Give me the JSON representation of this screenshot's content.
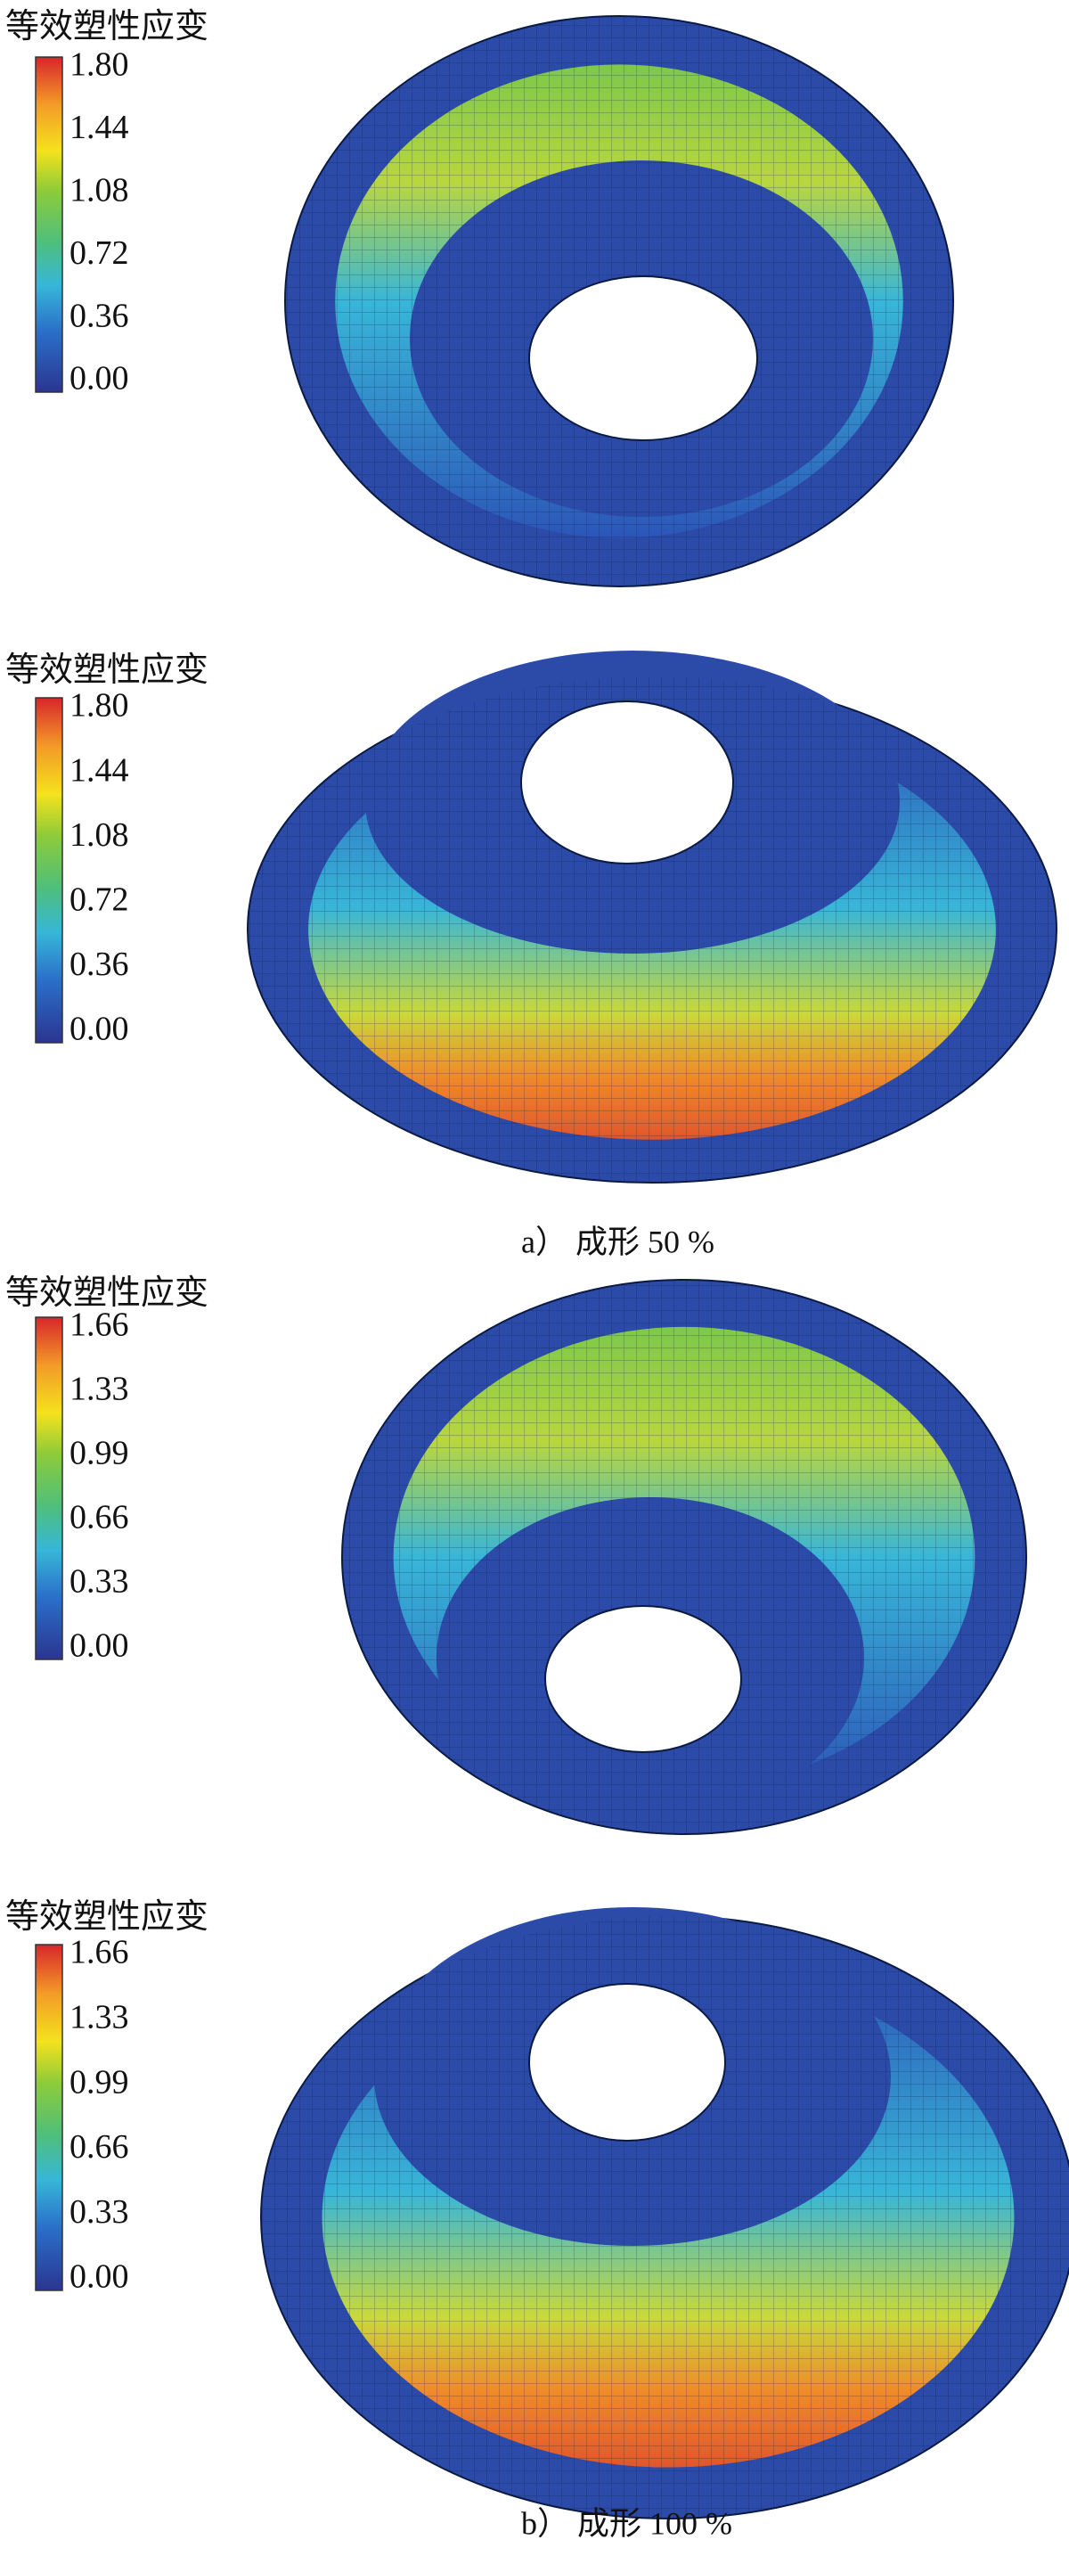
{
  "panels": [
    {
      "legend_title": "等效塑性应变",
      "ticks": [
        "1.80",
        "1.44",
        "1.08",
        "0.72",
        "0.36",
        "0.00"
      ]
    },
    {
      "legend_title": "等效塑性应变",
      "ticks": [
        "1.80",
        "1.44",
        "1.08",
        "0.72",
        "0.36",
        "0.00"
      ]
    },
    {
      "legend_title": "等效塑性应变",
      "ticks": [
        "1.66",
        "1.33",
        "0.99",
        "0.66",
        "0.33",
        "0.00"
      ]
    },
    {
      "legend_title": "等效塑性应变",
      "ticks": [
        "1.66",
        "1.33",
        "0.99",
        "0.66",
        "0.33",
        "0.00"
      ]
    }
  ],
  "captions": [
    "a） 成形 50 %",
    "b） 成形 100 %"
  ]
}
